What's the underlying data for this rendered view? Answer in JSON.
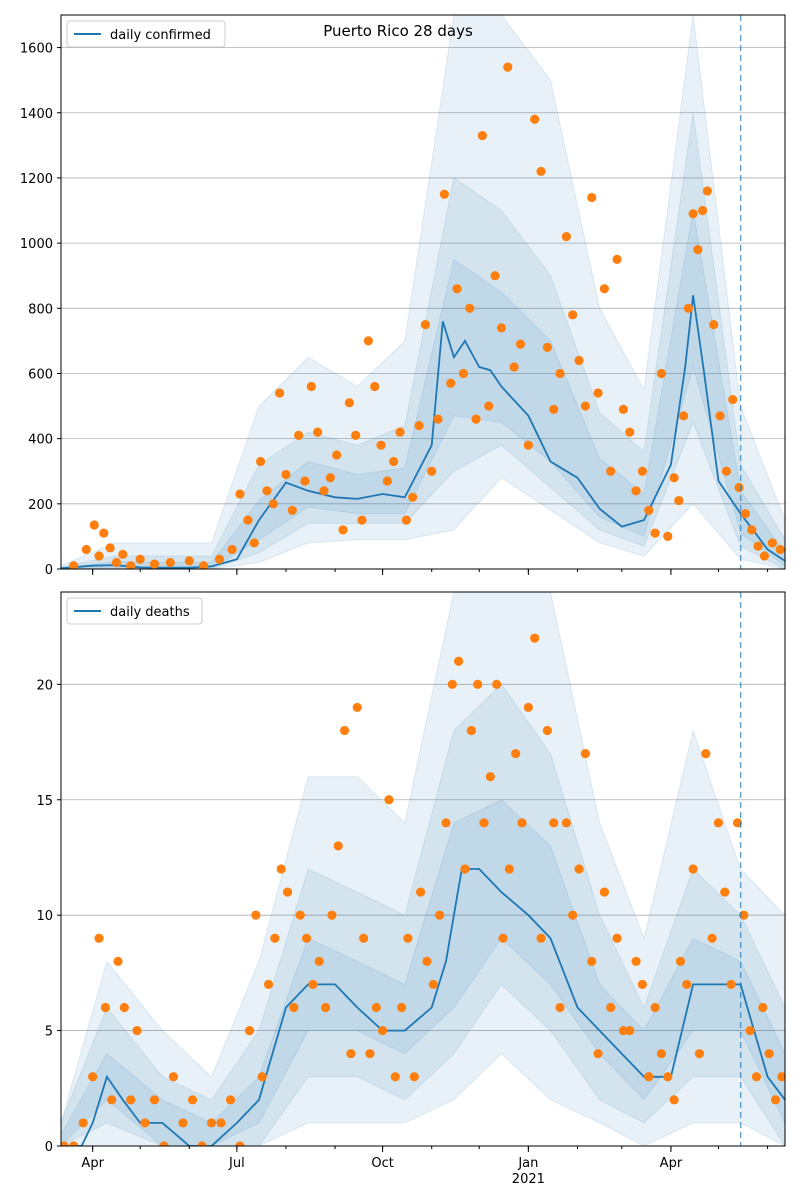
{
  "figure": {
    "title": "Puerto Rico 28 days",
    "colors": {
      "model_line": "#1f77b4",
      "band": "#1f77b4",
      "observed": "#ff7f0e",
      "grid": "#b0b0b0",
      "forecast_marker": "#1f77b4"
    }
  },
  "chart_data": [
    {
      "type": "line",
      "title": "Puerto Rico 28 days",
      "legend": [
        "daily confirmed"
      ],
      "legend_placement": "top-left",
      "grid": "horizontal",
      "x_range": [
        "2020-03-12",
        "2021-06-12"
      ],
      "x_tick_labels": [
        "Apr",
        "Jul",
        "Oct",
        "Jan",
        "Apr"
      ],
      "x_tick_dates": [
        "2020-04-01",
        "2020-07-01",
        "2020-10-01",
        "2021-01-01",
        "2021-04-01"
      ],
      "x_year_label": "2021",
      "forecast_start": "2021-05-15",
      "ylim": [
        0,
        1700
      ],
      "y_ticks": [
        0,
        200,
        400,
        600,
        800,
        1000,
        1200,
        1400,
        1600
      ],
      "series": [
        {
          "name": "daily confirmed",
          "kind": "model median",
          "x": [
            "2020-03-12",
            "2020-04-01",
            "2020-04-15",
            "2020-05-01",
            "2020-05-15",
            "2020-06-01",
            "2020-06-15",
            "2020-07-01",
            "2020-07-15",
            "2020-08-01",
            "2020-08-15",
            "2020-09-01",
            "2020-09-15",
            "2020-10-01",
            "2020-10-15",
            "2020-11-01",
            "2020-11-08",
            "2020-11-15",
            "2020-11-22",
            "2020-12-01",
            "2020-12-08",
            "2020-12-15",
            "2021-01-01",
            "2021-01-15",
            "2021-02-01",
            "2021-02-15",
            "2021-03-01",
            "2021-03-15",
            "2021-04-01",
            "2021-04-10",
            "2021-04-15",
            "2021-04-22",
            "2021-05-01",
            "2021-05-15",
            "2021-06-01",
            "2021-06-12"
          ],
          "values": [
            2,
            10,
            12,
            5,
            4,
            4,
            8,
            30,
            150,
            265,
            240,
            220,
            215,
            230,
            220,
            380,
            760,
            650,
            700,
            620,
            610,
            560,
            470,
            330,
            280,
            185,
            130,
            150,
            320,
            620,
            840,
            600,
            270,
            170,
            60,
            25
          ]
        }
      ],
      "bands_ranges": [
        {
          "x": [
            "2020-03-12",
            "2020-04-15",
            "2020-06-15",
            "2020-07-15",
            "2020-08-15",
            "2020-09-15",
            "2020-10-15",
            "2020-11-15",
            "2020-12-15",
            "2021-01-15",
            "2021-02-15",
            "2021-03-15",
            "2021-04-15",
            "2021-05-15",
            "2021-06-12"
          ],
          "lo": [
            0,
            0,
            0,
            20,
            80,
            90,
            90,
            120,
            280,
            180,
            80,
            40,
            200,
            30,
            0
          ],
          "hi": [
            10,
            80,
            80,
            500,
            650,
            560,
            700,
            1700,
            1700,
            1500,
            800,
            550,
            1700,
            500,
            150
          ]
        },
        {
          "x": [
            "2020-03-12",
            "2020-04-15",
            "2020-06-15",
            "2020-07-15",
            "2020-08-15",
            "2020-09-15",
            "2020-10-15",
            "2020-11-15",
            "2020-12-15",
            "2021-01-15",
            "2021-02-15",
            "2021-03-15",
            "2021-04-15",
            "2021-05-15",
            "2021-06-12"
          ],
          "lo": [
            0,
            0,
            0,
            50,
            140,
            140,
            140,
            300,
            380,
            250,
            120,
            70,
            450,
            70,
            0
          ],
          "hi": [
            6,
            40,
            40,
            320,
            420,
            380,
            440,
            1200,
            1100,
            900,
            480,
            360,
            1400,
            320,
            90
          ]
        },
        {
          "x": [
            "2020-03-12",
            "2020-04-15",
            "2020-06-15",
            "2020-07-15",
            "2020-08-15",
            "2020-09-15",
            "2020-10-15",
            "2020-11-15",
            "2020-12-15",
            "2021-01-15",
            "2021-02-15",
            "2021-03-15",
            "2021-04-15",
            "2021-05-15",
            "2021-06-12"
          ],
          "lo": [
            0,
            3,
            2,
            90,
            190,
            170,
            170,
            470,
            450,
            330,
            160,
            100,
            620,
            110,
            10
          ],
          "hi": [
            4,
            22,
            20,
            210,
            330,
            290,
            310,
            950,
            850,
            700,
            340,
            230,
            1100,
            240,
            50
          ]
        }
      ],
      "observed": {
        "x": [
          "2020-03-20",
          "2020-03-28",
          "2020-04-02",
          "2020-04-05",
          "2020-04-08",
          "2020-04-12",
          "2020-04-16",
          "2020-04-20",
          "2020-04-25",
          "2020-05-01",
          "2020-05-10",
          "2020-05-20",
          "2020-06-01",
          "2020-06-10",
          "2020-06-20",
          "2020-06-28",
          "2020-07-03",
          "2020-07-08",
          "2020-07-12",
          "2020-07-16",
          "2020-07-20",
          "2020-07-24",
          "2020-07-28",
          "2020-08-01",
          "2020-08-05",
          "2020-08-09",
          "2020-08-13",
          "2020-08-17",
          "2020-08-21",
          "2020-08-25",
          "2020-08-29",
          "2020-09-02",
          "2020-09-06",
          "2020-09-10",
          "2020-09-14",
          "2020-09-18",
          "2020-09-22",
          "2020-09-26",
          "2020-09-30",
          "2020-10-04",
          "2020-10-08",
          "2020-10-12",
          "2020-10-16",
          "2020-10-20",
          "2020-10-24",
          "2020-10-28",
          "2020-11-01",
          "2020-11-05",
          "2020-11-09",
          "2020-11-13",
          "2020-11-17",
          "2020-11-21",
          "2020-11-25",
          "2020-11-29",
          "2020-12-03",
          "2020-12-07",
          "2020-12-11",
          "2020-12-15",
          "2020-12-19",
          "2020-12-23",
          "2020-12-27",
          "2021-01-01",
          "2021-01-05",
          "2021-01-09",
          "2021-01-13",
          "2021-01-17",
          "2021-01-21",
          "2021-01-25",
          "2021-01-29",
          "2021-02-02",
          "2021-02-06",
          "2021-02-10",
          "2021-02-14",
          "2021-02-18",
          "2021-02-22",
          "2021-02-26",
          "2021-03-02",
          "2021-03-06",
          "2021-03-10",
          "2021-03-14",
          "2021-03-18",
          "2021-03-22",
          "2021-03-26",
          "2021-03-30",
          "2021-04-03",
          "2021-04-06",
          "2021-04-09",
          "2021-04-12",
          "2021-04-15",
          "2021-04-18",
          "2021-04-21",
          "2021-04-24",
          "2021-04-28",
          "2021-05-02",
          "2021-05-06",
          "2021-05-10",
          "2021-05-14",
          "2021-05-18",
          "2021-05-22",
          "2021-05-26",
          "2021-05-30",
          "2021-06-04",
          "2021-06-09"
        ],
        "values": [
          10,
          60,
          135,
          40,
          110,
          65,
          20,
          45,
          10,
          30,
          15,
          20,
          25,
          10,
          30,
          60,
          230,
          150,
          80,
          330,
          240,
          200,
          540,
          290,
          180,
          410,
          270,
          560,
          420,
          240,
          280,
          350,
          120,
          510,
          410,
          150,
          700,
          560,
          380,
          270,
          330,
          420,
          150,
          220,
          440,
          750,
          300,
          460,
          1150,
          570,
          860,
          600,
          800,
          460,
          1330,
          500,
          900,
          740,
          1540,
          620,
          690,
          380,
          1380,
          1220,
          680,
          490,
          600,
          1020,
          780,
          640,
          500,
          1140,
          540,
          860,
          300,
          950,
          490,
          420,
          240,
          300,
          180,
          110,
          600,
          100,
          280,
          210,
          470,
          800,
          1090,
          980,
          1100,
          1160,
          750,
          470,
          300,
          520,
          250,
          170,
          120,
          70,
          40,
          80,
          60
        ]
      }
    },
    {
      "type": "line",
      "legend": [
        "daily deaths"
      ],
      "legend_placement": "top-left",
      "grid": "horizontal",
      "x_range": [
        "2020-03-12",
        "2021-06-12"
      ],
      "x_tick_labels": [
        "Apr",
        "Jul",
        "Oct",
        "Jan",
        "Apr"
      ],
      "x_tick_dates": [
        "2020-04-01",
        "2020-07-01",
        "2020-10-01",
        "2021-01-01",
        "2021-04-01"
      ],
      "x_year_label": "2021",
      "forecast_start": "2021-05-15",
      "ylim": [
        0,
        24
      ],
      "y_ticks": [
        0,
        5,
        10,
        15,
        20
      ],
      "series": [
        {
          "name": "daily deaths",
          "kind": "model median",
          "x": [
            "2020-03-12",
            "2020-03-25",
            "2020-04-01",
            "2020-04-10",
            "2020-04-20",
            "2020-05-01",
            "2020-05-15",
            "2020-06-01",
            "2020-06-15",
            "2020-07-01",
            "2020-07-15",
            "2020-08-01",
            "2020-08-15",
            "2020-09-01",
            "2020-09-15",
            "2020-10-01",
            "2020-10-15",
            "2020-11-01",
            "2020-11-10",
            "2020-11-20",
            "2020-12-01",
            "2020-12-15",
            "2021-01-01",
            "2021-01-15",
            "2021-02-01",
            "2021-02-15",
            "2021-03-01",
            "2021-03-15",
            "2021-04-01",
            "2021-04-15",
            "2021-05-01",
            "2021-05-15",
            "2021-06-01",
            "2021-06-12"
          ],
          "values": [
            0,
            0,
            1,
            3,
            2,
            1,
            1,
            0,
            0,
            1,
            2,
            6,
            7,
            7,
            6,
            5,
            5,
            6,
            8,
            12,
            12,
            11,
            10,
            9,
            6,
            5,
            4,
            3,
            3,
            7,
            7,
            7,
            3,
            2
          ]
        }
      ],
      "bands_ranges": [
        {
          "x": [
            "2020-03-12",
            "2020-04-10",
            "2020-05-15",
            "2020-06-15",
            "2020-07-15",
            "2020-08-15",
            "2020-09-15",
            "2020-10-15",
            "2020-11-15",
            "2020-12-15",
            "2021-01-15",
            "2021-02-15",
            "2021-03-15",
            "2021-04-15",
            "2021-05-15",
            "2021-06-12"
          ],
          "lo": [
            0,
            0,
            0,
            0,
            0,
            1,
            1,
            1,
            2,
            4,
            2,
            1,
            0,
            1,
            1,
            0
          ],
          "hi": [
            1,
            8,
            5,
            3,
            8,
            16,
            16,
            14,
            24,
            24,
            24,
            14,
            9,
            18,
            12,
            10
          ]
        },
        {
          "x": [
            "2020-03-12",
            "2020-04-10",
            "2020-05-15",
            "2020-06-15",
            "2020-07-15",
            "2020-08-15",
            "2020-09-15",
            "2020-10-15",
            "2020-11-15",
            "2020-12-15",
            "2021-01-15",
            "2021-02-15",
            "2021-03-15",
            "2021-04-15",
            "2021-05-15",
            "2021-06-12"
          ],
          "lo": [
            0,
            1,
            0,
            0,
            0,
            3,
            3,
            2,
            4,
            7,
            5,
            2,
            1,
            3,
            3,
            0
          ],
          "hi": [
            1,
            6,
            3,
            2,
            5,
            12,
            11,
            10,
            18,
            20,
            17,
            10,
            6,
            12,
            10,
            6
          ]
        },
        {
          "x": [
            "2020-03-12",
            "2020-04-10",
            "2020-05-15",
            "2020-06-15",
            "2020-07-15",
            "2020-08-15",
            "2020-09-15",
            "2020-10-15",
            "2020-11-15",
            "2020-12-15",
            "2021-01-15",
            "2021-02-15",
            "2021-03-15",
            "2021-04-15",
            "2021-05-15",
            "2021-06-12"
          ],
          "lo": [
            0,
            2,
            0,
            0,
            1,
            5,
            5,
            4,
            6,
            9,
            7,
            4,
            2,
            5,
            5,
            1
          ],
          "hi": [
            0.5,
            4,
            2,
            1,
            3,
            9,
            8,
            7,
            14,
            15,
            13,
            7,
            5,
            9,
            8,
            4
          ]
        }
      ],
      "observed": {
        "x": [
          "2020-03-14",
          "2020-03-20",
          "2020-03-26",
          "2020-04-01",
          "2020-04-05",
          "2020-04-09",
          "2020-04-13",
          "2020-04-17",
          "2020-04-21",
          "2020-04-25",
          "2020-04-29",
          "2020-05-04",
          "2020-05-10",
          "2020-05-16",
          "2020-05-22",
          "2020-05-28",
          "2020-06-03",
          "2020-06-09",
          "2020-06-15",
          "2020-06-21",
          "2020-06-27",
          "2020-07-03",
          "2020-07-09",
          "2020-07-13",
          "2020-07-17",
          "2020-07-21",
          "2020-07-25",
          "2020-07-29",
          "2020-08-02",
          "2020-08-06",
          "2020-08-10",
          "2020-08-14",
          "2020-08-18",
          "2020-08-22",
          "2020-08-26",
          "2020-08-30",
          "2020-09-03",
          "2020-09-07",
          "2020-09-11",
          "2020-09-15",
          "2020-09-19",
          "2020-09-23",
          "2020-09-27",
          "2020-10-01",
          "2020-10-05",
          "2020-10-09",
          "2020-10-13",
          "2020-10-17",
          "2020-10-21",
          "2020-10-25",
          "2020-10-29",
          "2020-11-02",
          "2020-11-06",
          "2020-11-10",
          "2020-11-14",
          "2020-11-18",
          "2020-11-22",
          "2020-11-26",
          "2020-11-30",
          "2020-12-04",
          "2020-12-08",
          "2020-12-12",
          "2020-12-16",
          "2020-12-20",
          "2020-12-24",
          "2020-12-28",
          "2021-01-01",
          "2021-01-05",
          "2021-01-09",
          "2021-01-13",
          "2021-01-17",
          "2021-01-21",
          "2021-01-25",
          "2021-01-29",
          "2021-02-02",
          "2021-02-06",
          "2021-02-10",
          "2021-02-14",
          "2021-02-18",
          "2021-02-22",
          "2021-02-26",
          "2021-03-02",
          "2021-03-06",
          "2021-03-10",
          "2021-03-14",
          "2021-03-18",
          "2021-03-22",
          "2021-03-26",
          "2021-03-30",
          "2021-04-03",
          "2021-04-07",
          "2021-04-11",
          "2021-04-15",
          "2021-04-19",
          "2021-04-23",
          "2021-04-27",
          "2021-05-01",
          "2021-05-05",
          "2021-05-09",
          "2021-05-13",
          "2021-05-17",
          "2021-05-21",
          "2021-05-25",
          "2021-05-29",
          "2021-06-02",
          "2021-06-06",
          "2021-06-10"
        ],
        "values": [
          0,
          0,
          1,
          3,
          9,
          6,
          2,
          8,
          6,
          2,
          5,
          1,
          2,
          0,
          3,
          1,
          2,
          0,
          1,
          1,
          2,
          0,
          5,
          10,
          3,
          7,
          9,
          12,
          11,
          6,
          10,
          9,
          7,
          8,
          6,
          10,
          13,
          18,
          4,
          19,
          9,
          4,
          6,
          5,
          15,
          3,
          6,
          9,
          3,
          11,
          8,
          7,
          10,
          14,
          20,
          21,
          12,
          18,
          20,
          14,
          16,
          20,
          9,
          12,
          17,
          14,
          19,
          22,
          9,
          18,
          14,
          6,
          14,
          10,
          12,
          17,
          8,
          4,
          11,
          6,
          9,
          5,
          5,
          8,
          7,
          3,
          6,
          4,
          3,
          2,
          8,
          7,
          12,
          4,
          17,
          9,
          14,
          11,
          7,
          14,
          10,
          5,
          3,
          6,
          4,
          2,
          3
        ]
      }
    }
  ]
}
